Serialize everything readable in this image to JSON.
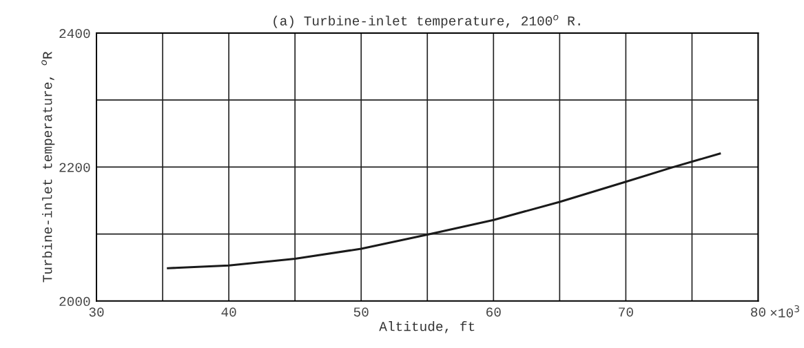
{
  "chart_data": {
    "type": "line",
    "title": "(a) Turbine-inlet temperature, 2100$^{o}$ R.",
    "xlabel": "Altitude, ft",
    "ylabel": "Turbine-inlet temperature, $^{o}$R",
    "series": [
      {
        "color": "#1a1a1a",
        "x": [
          35.4,
          40,
          45,
          50,
          55,
          60,
          65,
          70,
          73.6,
          77.1
        ],
        "values": [
          2049,
          2053,
          2063,
          2078,
          2099,
          2121,
          2148,
          2178,
          2200,
          2220
        ]
      }
    ],
    "xlim": [
      30,
      80
    ],
    "ylim": [
      2000,
      2400
    ],
    "xticks": [
      30,
      {
        "value": 35,
        "label": null
      },
      40,
      {
        "value": 45,
        "label": null
      },
      50,
      {
        "value": 55,
        "label": null
      },
      60,
      {
        "value": 65,
        "label": null
      },
      70,
      {
        "value": 75,
        "label": null
      },
      80
    ],
    "annotations": [
      "×10$^{3}$"
    ],
    "yticks": [
      2000,
      {
        "value": 2100,
        "label": null
      },
      2200,
      {
        "value": 2300,
        "label": null
      },
      2400
    ],
    "grid": true,
    "marker": "none",
    "line_style": "solid"
  }
}
